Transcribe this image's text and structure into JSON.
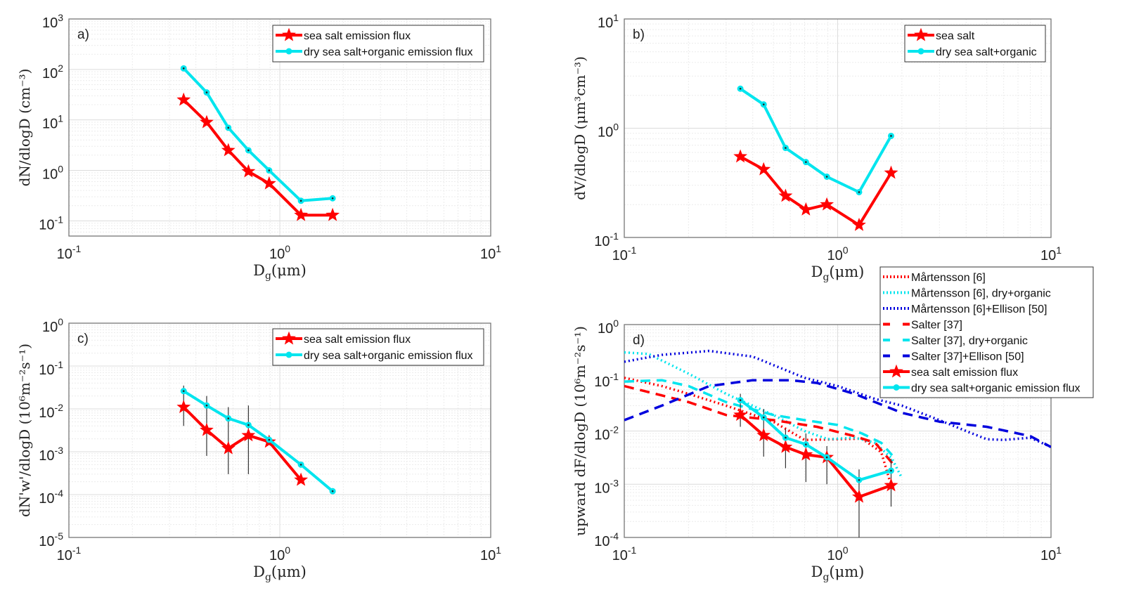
{
  "chart_data": [
    {
      "type": "line",
      "panel_label": "a)",
      "xscale": "log",
      "yscale": "log",
      "xlim": [
        0.1,
        10
      ],
      "ylim": [
        0.05,
        1000
      ],
      "xtick_exponents": [
        -1,
        0,
        1
      ],
      "ytick_exponents": [
        -1,
        0,
        1,
        2,
        3
      ],
      "xlabel": {
        "main": "D",
        "sub": "g",
        "rest": "(μm)"
      },
      "ylabel": "dN/dlogD (cm⁻³)",
      "grid": true,
      "legend_position": "top-right",
      "series": [
        {
          "name": "sea salt emission flux",
          "color": "#ff0000",
          "style": "solid",
          "marker": "star",
          "x": [
            0.35,
            0.45,
            0.57,
            0.71,
            0.89,
            1.26,
            1.78
          ],
          "y": [
            25,
            9,
            2.5,
            0.95,
            0.55,
            0.13,
            0.13
          ]
        },
        {
          "name": "dry sea salt+organic emission flux",
          "color": "#00e5ee",
          "style": "solid",
          "marker": "dot",
          "x": [
            0.35,
            0.45,
            0.57,
            0.71,
            0.89,
            1.26,
            1.78
          ],
          "y": [
            105,
            35,
            7,
            2.5,
            1.0,
            0.25,
            0.28
          ]
        }
      ]
    },
    {
      "type": "line",
      "panel_label": "b)",
      "xscale": "log",
      "yscale": "log",
      "xlim": [
        0.1,
        10
      ],
      "ylim": [
        0.1,
        10
      ],
      "xtick_exponents": [
        -1,
        0,
        1
      ],
      "ytick_exponents": [
        -1,
        0,
        1
      ],
      "xlabel": {
        "main": "D",
        "sub": "g",
        "rest": "(μm)"
      },
      "ylabel": "dV/dlogD (μm³cm⁻³)",
      "grid": true,
      "legend_position": "top-right",
      "series": [
        {
          "name": "sea salt",
          "color": "#ff0000",
          "style": "solid",
          "marker": "star",
          "x": [
            0.35,
            0.45,
            0.57,
            0.71,
            0.89,
            1.26,
            1.78
          ],
          "y": [
            0.55,
            0.42,
            0.24,
            0.18,
            0.2,
            0.13,
            0.39
          ]
        },
        {
          "name": "dry sea salt+organic",
          "color": "#00e5ee",
          "style": "solid",
          "marker": "dot",
          "x": [
            0.35,
            0.45,
            0.57,
            0.71,
            0.89,
            1.26,
            1.78
          ],
          "y": [
            2.3,
            1.65,
            0.66,
            0.49,
            0.36,
            0.26,
            0.85
          ]
        }
      ]
    },
    {
      "type": "line",
      "panel_label": "c)",
      "xscale": "log",
      "yscale": "log",
      "xlim": [
        0.1,
        10
      ],
      "ylim": [
        1e-05,
        1
      ],
      "xtick_exponents": [
        -1,
        0,
        1
      ],
      "ytick_exponents": [
        -5,
        -4,
        -3,
        -2,
        -1,
        0
      ],
      "xlabel": {
        "main": "D",
        "sub": "g",
        "rest": "(μm)"
      },
      "ylabel": "dN'w'/dlogD (10⁶m⁻²s⁻¹)",
      "grid": true,
      "legend_position": "top-right",
      "series": [
        {
          "name": "sea salt emission flux",
          "color": "#ff0000",
          "style": "solid",
          "marker": "star",
          "x": [
            0.35,
            0.45,
            0.57,
            0.71,
            0.89,
            1.26
          ],
          "y": [
            0.011,
            0.0032,
            0.0012,
            0.0024,
            0.0017,
            0.00022
          ],
          "err_lo": [
            0.004,
            0.0008,
            0.0003,
            0.0003,
            null,
            null
          ],
          "err_hi": [
            0.035,
            0.02,
            0.011,
            0.012,
            null,
            null
          ]
        },
        {
          "name": "dry sea salt+organic emission flux",
          "color": "#00e5ee",
          "style": "solid",
          "marker": "dot",
          "x": [
            0.35,
            0.45,
            0.57,
            0.71,
            0.89,
            1.26,
            1.78
          ],
          "y": [
            0.026,
            0.012,
            0.006,
            0.0042,
            0.0019,
            0.0005,
            0.00012
          ]
        }
      ]
    },
    {
      "type": "line",
      "panel_label": "d)",
      "xscale": "log",
      "yscale": "log",
      "xlim": [
        0.1,
        10
      ],
      "ylim": [
        0.0001,
        1
      ],
      "xtick_exponents": [
        -1,
        0,
        1
      ],
      "ytick_exponents": [
        -4,
        -3,
        -2,
        -1,
        0
      ],
      "xlabel": {
        "main": "D",
        "sub": "g",
        "rest": "(μm)"
      },
      "ylabel": "upward dF/dlogD (10⁶m⁻²s⁻¹)",
      "grid": true,
      "legend_position": "outside-top-right",
      "series": [
        {
          "name": "Mårtensson [6]",
          "color": "#ff0000",
          "style": "dotted",
          "x": [
            0.1,
            0.15,
            0.2,
            0.3,
            0.5,
            0.7,
            1.0,
            1.3,
            1.6,
            1.75
          ],
          "y": [
            0.1,
            0.07,
            0.05,
            0.03,
            0.015,
            0.0068,
            0.007,
            0.0072,
            0.004,
            0.0012
          ]
        },
        {
          "name": "Mårtensson [6], dry+organic",
          "color": "#00e5ee",
          "style": "dotted",
          "x": [
            0.1,
            0.13,
            0.2,
            0.3,
            0.5,
            0.7,
            0.9,
            1.2,
            1.5,
            1.8,
            2.0
          ],
          "y": [
            0.3,
            0.28,
            0.12,
            0.05,
            0.02,
            0.01,
            0.007,
            0.0075,
            0.006,
            0.003,
            0.0013
          ]
        },
        {
          "name": "Mårtensson [6]+Ellison [50]",
          "color": "#0000dd",
          "style": "dotted",
          "x": [
            0.1,
            0.15,
            0.25,
            0.4,
            0.7,
            1.0,
            1.5,
            2.0,
            3.0,
            4.0,
            5.0,
            6.0,
            8.0,
            10.0
          ],
          "y": [
            0.2,
            0.27,
            0.32,
            0.25,
            0.1,
            0.07,
            0.04,
            0.03,
            0.016,
            0.01,
            0.007,
            0.0068,
            0.0075,
            0.005
          ]
        },
        {
          "name": "Salter [37]",
          "color": "#ff0000",
          "style": "dashed",
          "x": [
            0.1,
            0.2,
            0.3,
            0.5,
            0.8,
            1.2,
            1.5,
            1.8
          ],
          "y": [
            0.07,
            0.035,
            0.02,
            0.016,
            0.012,
            0.008,
            0.006,
            0.0025
          ]
        },
        {
          "name": "Salter [37], dry+organic",
          "color": "#00e5ee",
          "style": "dashed",
          "x": [
            0.1,
            0.15,
            0.2,
            0.3,
            0.5,
            0.7,
            1.0,
            1.3,
            1.6,
            1.8
          ],
          "y": [
            0.085,
            0.09,
            0.07,
            0.035,
            0.02,
            0.016,
            0.013,
            0.009,
            0.006,
            0.0035
          ]
        },
        {
          "name": "Salter [37]+Ellison [50]",
          "color": "#0000dd",
          "style": "dashed",
          "x": [
            0.1,
            0.15,
            0.25,
            0.4,
            0.6,
            0.8,
            1.2,
            2.0,
            3.0,
            5.0,
            8.0,
            10.0
          ],
          "y": [
            0.016,
            0.03,
            0.07,
            0.09,
            0.09,
            0.08,
            0.05,
            0.022,
            0.015,
            0.012,
            0.008,
            0.005
          ]
        },
        {
          "name": "sea salt emission flux",
          "color": "#ff0000",
          "style": "solid",
          "marker": "star",
          "x": [
            0.35,
            0.45,
            0.57,
            0.71,
            0.89,
            1.26,
            1.78
          ],
          "y": [
            0.02,
            0.0083,
            0.005,
            0.0036,
            0.0032,
            0.00058,
            0.00095
          ],
          "err_lo": [
            0.012,
            0.0033,
            0.002,
            0.0011,
            0.001,
            0.0001,
            0.00038
          ],
          "err_hi": [
            0.05,
            0.026,
            0.011,
            0.009,
            0.0052,
            0.0019,
            0.003
          ]
        },
        {
          "name": "dry sea salt+organic emission flux",
          "color": "#00e5ee",
          "style": "solid",
          "marker": "dot",
          "x": [
            0.35,
            0.45,
            0.57,
            0.71,
            0.89,
            1.26,
            1.78
          ],
          "y": [
            0.038,
            0.018,
            0.0075,
            0.0056,
            0.0032,
            0.0012,
            0.0018
          ]
        }
      ]
    }
  ]
}
